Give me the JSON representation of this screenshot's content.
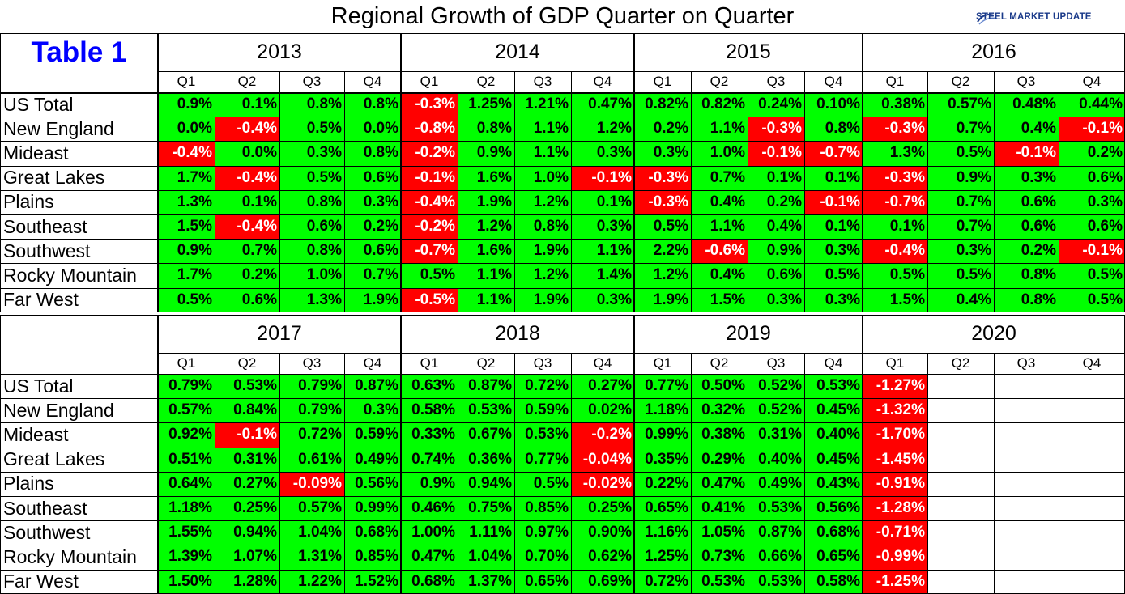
{
  "title": "Regional Growth of GDP Quarter on Quarter",
  "logo_text": "STEEL MARKET UPDATE",
  "table_label": "Table 1",
  "colors": {
    "positive": "#00ff00",
    "negative": "#ff0000",
    "title_blue": "#0000ff"
  },
  "quarters": [
    "Q1",
    "Q2",
    "Q3",
    "Q4"
  ],
  "blocks": [
    {
      "years": [
        "2013",
        "2014",
        "2015",
        "2016"
      ],
      "rows": [
        {
          "region": "US Total",
          "values": [
            "0.9%",
            "0.1%",
            "0.8%",
            "0.8%",
            "-0.3%",
            "1.25%",
            "1.21%",
            "0.47%",
            "0.82%",
            "0.82%",
            "0.24%",
            "0.10%",
            "0.38%",
            "0.57%",
            "0.48%",
            "0.44%"
          ]
        },
        {
          "region": "New England",
          "values": [
            "0.0%",
            "-0.4%",
            "0.5%",
            "0.0%",
            "-0.8%",
            "0.8%",
            "1.1%",
            "1.2%",
            "0.2%",
            "1.1%",
            "-0.3%",
            "0.8%",
            "-0.3%",
            "0.7%",
            "0.4%",
            "-0.1%"
          ]
        },
        {
          "region": "Mideast",
          "values": [
            "-0.4%",
            "0.0%",
            "0.3%",
            "0.8%",
            "-0.2%",
            "0.9%",
            "1.1%",
            "0.3%",
            "0.3%",
            "1.0%",
            "-0.1%",
            "-0.7%",
            "1.3%",
            "0.5%",
            "-0.1%",
            "0.2%"
          ]
        },
        {
          "region": "Great Lakes",
          "values": [
            "1.7%",
            "-0.4%",
            "0.5%",
            "0.6%",
            "-0.1%",
            "1.6%",
            "1.0%",
            "-0.1%",
            "-0.3%",
            "0.7%",
            "0.1%",
            "0.1%",
            "-0.3%",
            "0.9%",
            "0.3%",
            "0.6%"
          ]
        },
        {
          "region": "Plains",
          "values": [
            "1.3%",
            "0.1%",
            "0.8%",
            "0.3%",
            "-0.4%",
            "1.9%",
            "1.2%",
            "0.1%",
            "-0.3%",
            "0.4%",
            "0.2%",
            "-0.1%",
            "-0.7%",
            "0.7%",
            "0.6%",
            "0.3%"
          ]
        },
        {
          "region": "Southeast",
          "values": [
            "1.5%",
            "-0.4%",
            "0.6%",
            "0.2%",
            "-0.2%",
            "1.2%",
            "0.8%",
            "0.3%",
            "0.5%",
            "1.1%",
            "0.4%",
            "0.1%",
            "0.1%",
            "0.7%",
            "0.6%",
            "0.6%"
          ]
        },
        {
          "region": "Southwest",
          "values": [
            "0.9%",
            "0.7%",
            "0.8%",
            "0.6%",
            "-0.7%",
            "1.6%",
            "1.9%",
            "1.1%",
            "2.2%",
            "-0.6%",
            "0.9%",
            "0.3%",
            "-0.4%",
            "0.3%",
            "0.2%",
            "-0.1%"
          ]
        },
        {
          "region": "Rocky Mountain",
          "values": [
            "1.7%",
            "0.2%",
            "1.0%",
            "0.7%",
            "0.5%",
            "1.1%",
            "1.2%",
            "1.4%",
            "1.2%",
            "0.4%",
            "0.6%",
            "0.5%",
            "0.5%",
            "0.5%",
            "0.8%",
            "0.5%"
          ]
        },
        {
          "region": "Far West",
          "values": [
            "0.5%",
            "0.6%",
            "1.3%",
            "1.9%",
            "-0.5%",
            "1.1%",
            "1.9%",
            "0.3%",
            "1.9%",
            "1.5%",
            "0.3%",
            "0.3%",
            "1.5%",
            "0.4%",
            "0.8%",
            "0.5%"
          ]
        }
      ]
    },
    {
      "years": [
        "2017",
        "2018",
        "2019",
        "2020"
      ],
      "rows": [
        {
          "region": "US Total",
          "values": [
            "0.79%",
            "0.53%",
            "0.79%",
            "0.87%",
            "0.63%",
            "0.87%",
            "0.72%",
            "0.27%",
            "0.77%",
            "0.50%",
            "0.52%",
            "0.53%",
            "-1.27%",
            "",
            "",
            ""
          ]
        },
        {
          "region": "New England",
          "values": [
            "0.57%",
            "0.84%",
            "0.79%",
            "0.3%",
            "0.58%",
            "0.53%",
            "0.59%",
            "0.02%",
            "1.18%",
            "0.32%",
            "0.52%",
            "0.45%",
            "-1.32%",
            "",
            "",
            ""
          ]
        },
        {
          "region": "Mideast",
          "values": [
            "0.92%",
            "-0.1%",
            "0.72%",
            "0.59%",
            "0.33%",
            "0.67%",
            "0.53%",
            "-0.2%",
            "0.99%",
            "0.38%",
            "0.31%",
            "0.40%",
            "-1.70%",
            "",
            "",
            ""
          ]
        },
        {
          "region": "Great Lakes",
          "values": [
            "0.51%",
            "0.31%",
            "0.61%",
            "0.49%",
            "0.74%",
            "0.36%",
            "0.77%",
            "-0.04%",
            "0.35%",
            "0.29%",
            "0.40%",
            "0.45%",
            "-1.45%",
            "",
            "",
            ""
          ]
        },
        {
          "region": "Plains",
          "values": [
            "0.64%",
            "0.27%",
            "-0.09%",
            "0.56%",
            "0.9%",
            "0.94%",
            "0.5%",
            "-0.02%",
            "0.22%",
            "0.47%",
            "0.49%",
            "0.43%",
            "-0.91%",
            "",
            "",
            ""
          ]
        },
        {
          "region": "Southeast",
          "values": [
            "1.18%",
            "0.25%",
            "0.57%",
            "0.99%",
            "0.46%",
            "0.75%",
            "0.85%",
            "0.25%",
            "0.65%",
            "0.41%",
            "0.53%",
            "0.56%",
            "-1.28%",
            "",
            "",
            ""
          ]
        },
        {
          "region": "Southwest",
          "values": [
            "1.55%",
            "0.94%",
            "1.04%",
            "0.68%",
            "1.00%",
            "1.11%",
            "0.97%",
            "0.90%",
            "1.16%",
            "1.05%",
            "0.87%",
            "0.68%",
            "-0.71%",
            "",
            "",
            ""
          ]
        },
        {
          "region": "Rocky Mountain",
          "values": [
            "1.39%",
            "1.07%",
            "1.31%",
            "0.85%",
            "0.47%",
            "1.04%",
            "0.70%",
            "0.62%",
            "1.25%",
            "0.73%",
            "0.66%",
            "0.65%",
            "-0.99%",
            "",
            "",
            ""
          ]
        },
        {
          "region": "Far West",
          "values": [
            "1.50%",
            "1.28%",
            "1.22%",
            "1.52%",
            "0.68%",
            "1.37%",
            "0.65%",
            "0.69%",
            "0.72%",
            "0.53%",
            "0.53%",
            "0.58%",
            "-1.25%",
            "",
            "",
            ""
          ]
        }
      ]
    }
  ]
}
